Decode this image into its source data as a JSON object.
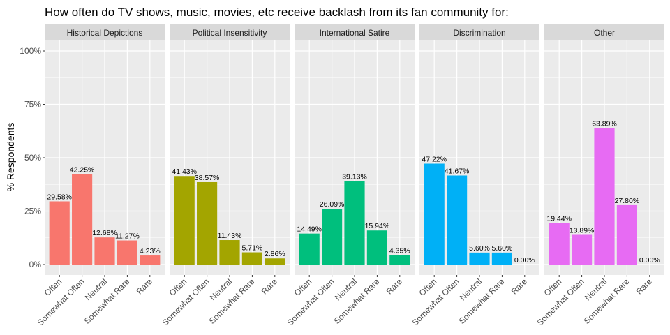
{
  "chart_data": {
    "type": "bar",
    "title": "How often do TV shows, music, movies, etc receive backlash from its fan community for:",
    "ylabel": "% Respondents",
    "xlabel": "",
    "ylim": [
      0,
      100
    ],
    "yticks": [
      "0%",
      "25%",
      "50%",
      "75%",
      "100%"
    ],
    "ytick_values": [
      0,
      25,
      50,
      75,
      100
    ],
    "categories": [
      "Often",
      "Somewhat Often",
      "Neutral",
      "Somewhat Rare",
      "Rare"
    ],
    "grid": true,
    "legend": "none",
    "facets": [
      {
        "name": "Historical Depictions",
        "color": "#F8766D",
        "values": [
          29.58,
          42.25,
          12.68,
          11.27,
          4.23
        ],
        "labels": [
          "29.58%",
          "42.25%",
          "12.68%",
          "11.27%",
          "4.23%"
        ]
      },
      {
        "name": "Political Insensitivity",
        "color": "#A3A500",
        "values": [
          41.43,
          38.57,
          11.43,
          5.71,
          2.86
        ],
        "labels": [
          "41.43%",
          "38.57%",
          "11.43%",
          "5.71%",
          "2.86%"
        ]
      },
      {
        "name": "International Satire",
        "color": "#00BF7D",
        "values": [
          14.49,
          26.09,
          39.13,
          15.94,
          4.35
        ],
        "labels": [
          "14.49%",
          "26.09%",
          "39.13%",
          "15.94%",
          "4.35%"
        ]
      },
      {
        "name": "Discrimination",
        "color": "#00B0F6",
        "values": [
          47.22,
          41.67,
          5.6,
          5.6,
          0.0
        ],
        "labels": [
          "47.22%",
          "41.67%",
          "5.60%",
          "5.60%",
          "0.00%"
        ]
      },
      {
        "name": "Other",
        "color": "#E76BF3",
        "values": [
          19.44,
          13.89,
          63.89,
          27.8,
          0.0
        ],
        "labels": [
          "19.44%",
          "13.89%",
          "63.89%",
          "27.80%",
          "0.00%"
        ]
      }
    ]
  }
}
